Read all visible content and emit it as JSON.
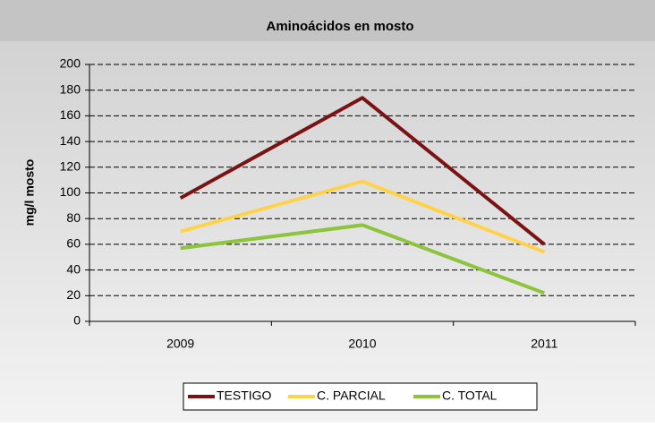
{
  "chart_data": {
    "type": "line",
    "title": "Aminoácidos en mosto",
    "ylabel": "mg/l mosto",
    "categories": [
      "2009",
      "2010",
      "2011"
    ],
    "series": [
      {
        "name": "TESTIGO",
        "color": "#7b1315",
        "values": [
          96,
          174,
          60
        ]
      },
      {
        "name": "C. PARCIAL",
        "color": "#ffd24a",
        "values": [
          70,
          109,
          54
        ]
      },
      {
        "name": "C. TOTAL",
        "color": "#8cc43c",
        "values": [
          57,
          75,
          22
        ]
      }
    ],
    "ylim": [
      0,
      200
    ],
    "yticks": [
      0,
      20,
      40,
      60,
      80,
      100,
      120,
      140,
      160,
      180,
      200
    ],
    "grid": true,
    "legend": "bottom"
  }
}
